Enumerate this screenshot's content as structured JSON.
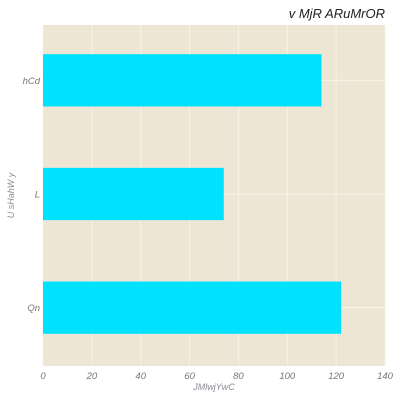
{
  "chart_data": {
    "type": "bar",
    "orientation": "horizontal",
    "title": "v MjR ARuMrOR",
    "xlabel": "JMlwjYwC",
    "ylabel": "U sHahW  y",
    "categories": [
      "hCd",
      "L",
      "Qn"
    ],
    "values": [
      114,
      74,
      122
    ],
    "xlim": [
      0,
      140
    ],
    "xticks": [
      0,
      20,
      40,
      60,
      80,
      100,
      120,
      140
    ],
    "grid": true,
    "legend": "none",
    "colors": {
      "bar": "#00e1ff",
      "plot_background": "#ede6d4",
      "grid": "#f7f3e9"
    }
  }
}
